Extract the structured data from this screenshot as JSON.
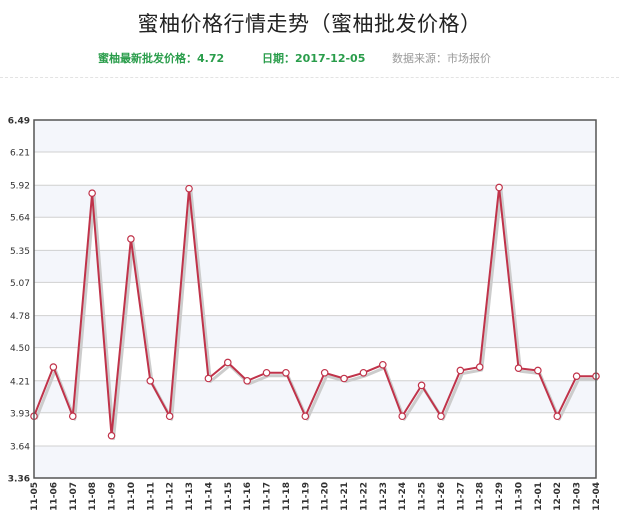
{
  "header": {
    "title": "蜜柚价格行情走势（蜜柚批发价格）",
    "latest_price_label": "蜜柚最新批发价格：4.72",
    "date_label": "日期：2017-12-05",
    "source_label": "数据来源：市场报价"
  },
  "colors": {
    "line": "#c0334a",
    "shadow": "#cccccc",
    "point_fill": "#ffffff",
    "green_text": "#2a9d4b",
    "gray_text": "#999999",
    "plot_band": "#f4f6fb"
  },
  "chart_data": {
    "type": "line",
    "title": "",
    "xlabel": "",
    "ylabel": "",
    "ylim": [
      3.36,
      6.49
    ],
    "y_ticks": [
      "3.36",
      "3.64",
      "3.93",
      "4.21",
      "4.50",
      "4.78",
      "5.07",
      "5.35",
      "5.64",
      "5.92",
      "6.21",
      "6.49"
    ],
    "categories": [
      "11-05",
      "11-06",
      "11-07",
      "11-08",
      "11-09",
      "11-10",
      "11-11",
      "11-12",
      "11-13",
      "11-14",
      "11-15",
      "11-16",
      "11-17",
      "11-18",
      "11-19",
      "11-20",
      "11-21",
      "11-22",
      "11-23",
      "11-24",
      "11-25",
      "11-26",
      "11-27",
      "11-28",
      "11-29",
      "11-30",
      "12-01",
      "12-02",
      "12-03",
      "12-04"
    ],
    "series": [
      {
        "values": [
          3.9,
          4.33,
          3.9,
          5.85,
          3.73,
          5.45,
          4.21,
          3.9,
          5.89,
          4.23,
          4.37,
          4.21,
          4.28,
          4.28,
          3.9,
          4.28,
          4.23,
          4.28,
          4.35,
          3.9,
          4.17,
          3.9,
          4.3,
          4.33,
          5.9,
          4.32,
          4.3,
          3.9,
          4.25,
          4.25
        ]
      }
    ],
    "grid": true,
    "legend": "none"
  }
}
